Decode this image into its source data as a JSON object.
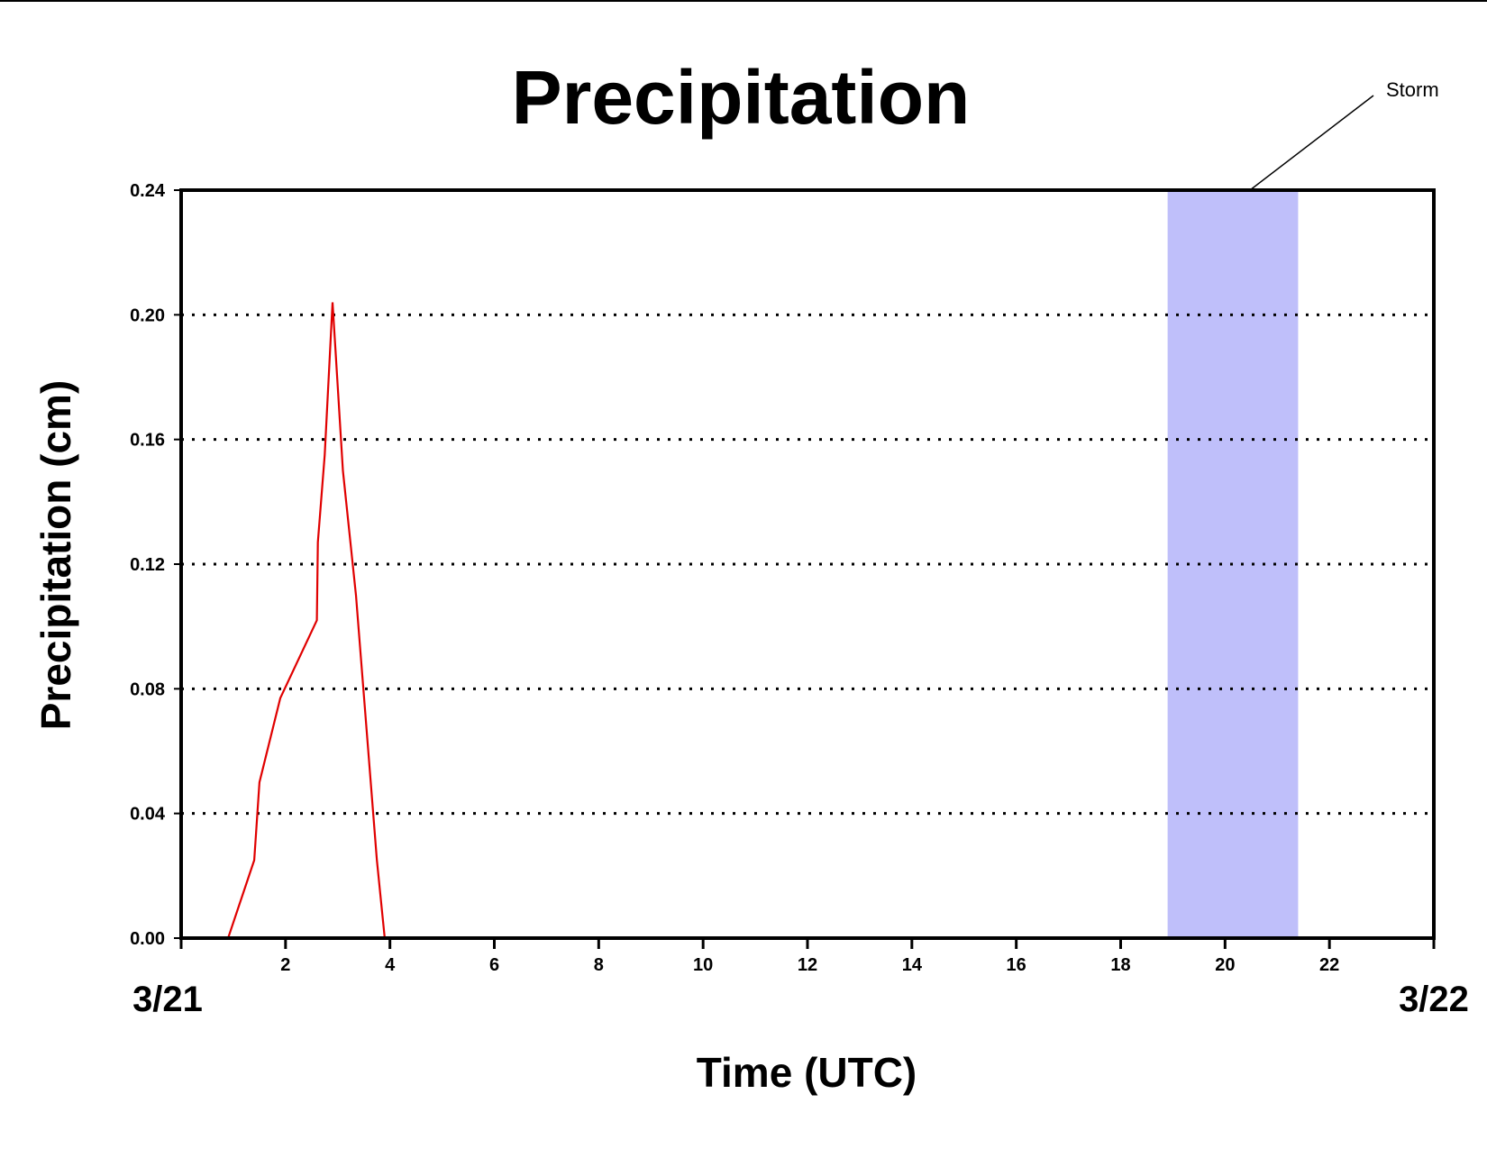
{
  "chart_data": {
    "type": "line",
    "title": "Precipitation",
    "xlabel": "Time (UTC)",
    "ylabel": "Precipitation (cm)",
    "xlim": [
      0,
      24
    ],
    "ylim": [
      0,
      0.24
    ],
    "y_ticks": [
      "0.00",
      "0.04",
      "0.08",
      "0.12",
      "0.16",
      "0.20",
      "0.24"
    ],
    "x_ticks": [
      "2",
      "4",
      "6",
      "8",
      "10",
      "12",
      "14",
      "16",
      "18",
      "20",
      "22"
    ],
    "x_start_label": "3/21",
    "x_end_label": "3/22",
    "grid": "horizontal dotted",
    "series": [
      {
        "color": "#e00000",
        "x": [
          0,
          0,
          0.9,
          1.4,
          1.5,
          1.9,
          2.6,
          2.62,
          2.75,
          2.9,
          3.1,
          3.35,
          3.75,
          3.9,
          24
        ],
        "y": [
          0.063,
          0,
          0,
          0.025,
          0.05,
          0.077,
          0.102,
          0.127,
          0.155,
          0.204,
          0.15,
          0.11,
          0.025,
          0,
          0
        ]
      }
    ],
    "shaded_regions": [
      {
        "label": "Storm",
        "x_start": 18.9,
        "x_end": 21.4,
        "color": "#bfbffa"
      }
    ]
  }
}
